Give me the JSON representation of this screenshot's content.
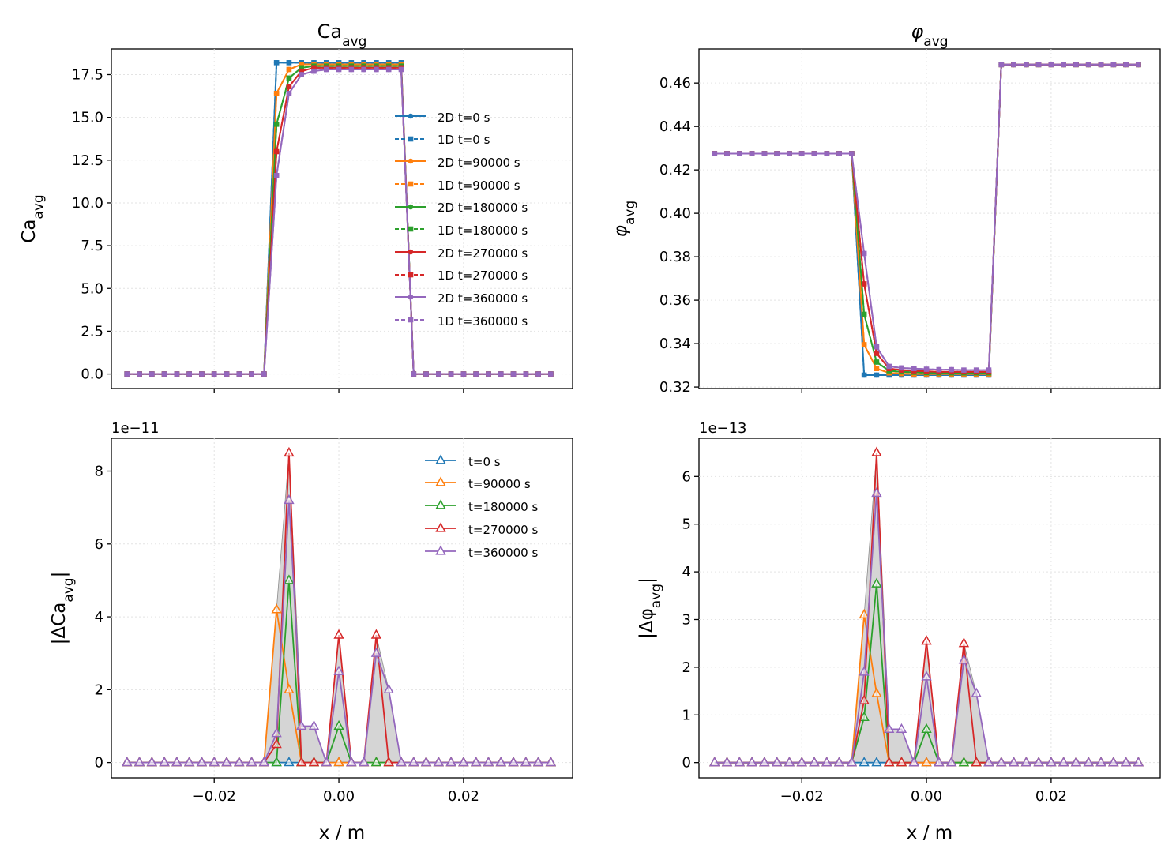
{
  "colors": {
    "t0": "#1f77b4",
    "t90000": "#ff7f0e",
    "t180000": "#2ca02c",
    "t270000": "#d62728",
    "t360000": "#9467bd",
    "fill": "#d3d3d3"
  },
  "chart_data": [
    {
      "id": "ca",
      "type": "line",
      "title_main": "Ca",
      "title_sub": "avg",
      "ylabel_main": "Ca",
      "ylabel_sub": "avg",
      "xlim": [
        -0.0365,
        0.0375
      ],
      "ylim": [
        -0.85,
        19.0
      ],
      "yticks": [
        0.0,
        2.5,
        5.0,
        7.5,
        10.0,
        12.5,
        15.0,
        17.5
      ],
      "ytick_labels": [
        "0.0",
        "2.5",
        "5.0",
        "7.5",
        "10.0",
        "12.5",
        "15.0",
        "17.5"
      ],
      "xticks": [
        -0.02,
        0.0,
        0.02
      ],
      "x": [
        -0.034,
        -0.032,
        -0.03,
        -0.028,
        -0.026,
        -0.024,
        -0.022,
        -0.02,
        -0.018,
        -0.016,
        -0.014,
        -0.012,
        -0.01,
        -0.008,
        -0.006,
        -0.004,
        -0.002,
        0.0,
        0.002,
        0.004,
        0.006,
        0.008,
        0.01,
        0.012,
        0.014,
        0.016,
        0.018,
        0.02,
        0.022,
        0.024,
        0.026,
        0.028,
        0.03,
        0.032,
        0.034
      ],
      "legend_position": "center-right",
      "legend": [
        "2D  t=0 s",
        "1D t=0 s",
        "2D  t=90000 s",
        "1D t=90000 s",
        "2D  t=180000 s",
        "1D t=180000 s",
        "2D  t=270000 s",
        "1D t=270000 s",
        "2D  t=360000 s",
        "1D t=360000 s"
      ],
      "series": [
        {
          "name": "t=0 s",
          "color_key": "t0",
          "values": [
            0,
            0,
            0,
            0,
            0,
            0,
            0,
            0,
            0,
            0,
            0,
            0,
            18.2,
            18.2,
            18.2,
            18.2,
            18.2,
            18.2,
            18.2,
            18.2,
            18.2,
            18.2,
            18.2,
            0,
            0,
            0,
            0,
            0,
            0,
            0,
            0,
            0,
            0,
            0,
            0
          ]
        },
        {
          "name": "t=90000 s",
          "color_key": "t90000",
          "values": [
            0,
            0,
            0,
            0,
            0,
            0,
            0,
            0,
            0,
            0,
            0,
            0,
            16.4,
            17.8,
            18.1,
            18.1,
            18.1,
            18.1,
            18.1,
            18.1,
            18.1,
            18.1,
            18.1,
            0,
            0,
            0,
            0,
            0,
            0,
            0,
            0,
            0,
            0,
            0,
            0
          ]
        },
        {
          "name": "t=180000 s",
          "color_key": "t180000",
          "values": [
            0,
            0,
            0,
            0,
            0,
            0,
            0,
            0,
            0,
            0,
            0,
            0,
            14.6,
            17.3,
            17.9,
            18.0,
            18.0,
            18.0,
            18.0,
            18.0,
            18.0,
            18.0,
            18.0,
            0,
            0,
            0,
            0,
            0,
            0,
            0,
            0,
            0,
            0,
            0,
            0
          ]
        },
        {
          "name": "t=270000 s",
          "color_key": "t270000",
          "values": [
            0,
            0,
            0,
            0,
            0,
            0,
            0,
            0,
            0,
            0,
            0,
            0,
            13.0,
            16.8,
            17.7,
            17.9,
            17.9,
            17.9,
            17.9,
            17.9,
            17.9,
            17.9,
            17.9,
            0,
            0,
            0,
            0,
            0,
            0,
            0,
            0,
            0,
            0,
            0,
            0
          ]
        },
        {
          "name": "t=360000 s",
          "color_key": "t360000",
          "values": [
            0,
            0,
            0,
            0,
            0,
            0,
            0,
            0,
            0,
            0,
            0,
            0,
            11.6,
            16.4,
            17.5,
            17.7,
            17.8,
            17.8,
            17.8,
            17.8,
            17.8,
            17.8,
            17.8,
            0,
            0,
            0,
            0,
            0,
            0,
            0,
            0,
            0,
            0,
            0,
            0
          ]
        }
      ]
    },
    {
      "id": "phi",
      "type": "line",
      "title_main": "φ",
      "title_sub": "avg",
      "ylabel_main": "φ",
      "ylabel_sub": "avg",
      "xlim": [
        -0.0365,
        0.0375
      ],
      "ylim": [
        0.3193,
        0.4757
      ],
      "yticks": [
        0.32,
        0.34,
        0.36,
        0.38,
        0.4,
        0.42,
        0.44,
        0.46
      ],
      "ytick_labels": [
        "0.32",
        "0.34",
        "0.36",
        "0.38",
        "0.40",
        "0.42",
        "0.44",
        "0.46"
      ],
      "xticks": [
        -0.02,
        0.0,
        0.02
      ],
      "x": [
        -0.034,
        -0.032,
        -0.03,
        -0.028,
        -0.026,
        -0.024,
        -0.022,
        -0.02,
        -0.018,
        -0.016,
        -0.014,
        -0.012,
        -0.01,
        -0.008,
        -0.006,
        -0.004,
        -0.002,
        0.0,
        0.002,
        0.004,
        0.006,
        0.008,
        0.01,
        0.012,
        0.014,
        0.016,
        0.018,
        0.02,
        0.022,
        0.024,
        0.026,
        0.028,
        0.03,
        0.032,
        0.034
      ],
      "series": [
        {
          "name": "t=0 s",
          "color_key": "t0",
          "values": [
            0.4275,
            0.4275,
            0.4275,
            0.4275,
            0.4275,
            0.4275,
            0.4275,
            0.4275,
            0.4275,
            0.4275,
            0.4275,
            0.4275,
            0.3255,
            0.3255,
            0.3255,
            0.3255,
            0.3255,
            0.3255,
            0.3255,
            0.3255,
            0.3255,
            0.3255,
            0.3255,
            0.4685,
            0.4685,
            0.4685,
            0.4685,
            0.4685,
            0.4685,
            0.4685,
            0.4685,
            0.4685,
            0.4685,
            0.4685,
            0.4685
          ]
        },
        {
          "name": "t=90000 s",
          "color_key": "t90000",
          "values": [
            0.4275,
            0.4275,
            0.4275,
            0.4275,
            0.4275,
            0.4275,
            0.4275,
            0.4275,
            0.4275,
            0.4275,
            0.4275,
            0.4275,
            0.3395,
            0.3285,
            0.3265,
            0.3262,
            0.326,
            0.326,
            0.326,
            0.326,
            0.326,
            0.326,
            0.326,
            0.4685,
            0.4685,
            0.4685,
            0.4685,
            0.4685,
            0.4685,
            0.4685,
            0.4685,
            0.4685,
            0.4685,
            0.4685,
            0.4685
          ]
        },
        {
          "name": "t=180000 s",
          "color_key": "t180000",
          "values": [
            0.4275,
            0.4275,
            0.4275,
            0.4275,
            0.4275,
            0.4275,
            0.4275,
            0.4275,
            0.4275,
            0.4275,
            0.4275,
            0.4275,
            0.3535,
            0.3315,
            0.3275,
            0.327,
            0.3268,
            0.3266,
            0.3265,
            0.3265,
            0.3265,
            0.3265,
            0.3265,
            0.4685,
            0.4685,
            0.4685,
            0.4685,
            0.4685,
            0.4685,
            0.4685,
            0.4685,
            0.4685,
            0.4685,
            0.4685,
            0.4685
          ]
        },
        {
          "name": "t=270000 s",
          "color_key": "t270000",
          "values": [
            0.4275,
            0.4275,
            0.4275,
            0.4275,
            0.4275,
            0.4275,
            0.4275,
            0.4275,
            0.4275,
            0.4275,
            0.4275,
            0.4275,
            0.3675,
            0.3355,
            0.3285,
            0.3278,
            0.3275,
            0.3272,
            0.327,
            0.327,
            0.327,
            0.327,
            0.327,
            0.4685,
            0.4685,
            0.4685,
            0.4685,
            0.4685,
            0.4685,
            0.4685,
            0.4685,
            0.4685,
            0.4685,
            0.4685,
            0.4685
          ]
        },
        {
          "name": "t=360000 s",
          "color_key": "t360000",
          "values": [
            0.4275,
            0.4275,
            0.4275,
            0.4275,
            0.4275,
            0.4275,
            0.4275,
            0.4275,
            0.4275,
            0.4275,
            0.4275,
            0.4275,
            0.3815,
            0.3385,
            0.3295,
            0.3288,
            0.3285,
            0.3282,
            0.328,
            0.328,
            0.3278,
            0.3278,
            0.3278,
            0.4685,
            0.4685,
            0.4685,
            0.4685,
            0.4685,
            0.4685,
            0.4685,
            0.4685,
            0.4685,
            0.4685,
            0.4685,
            0.4685
          ]
        }
      ]
    },
    {
      "id": "dca",
      "type": "line",
      "ylabel_main": "|ΔCa",
      "ylabel_sub": "avg",
      "ylabel_end": "|",
      "xlabel": "x / m",
      "offset_label": "1e−11",
      "xlim": [
        -0.0365,
        0.0375
      ],
      "ylim": [
        -0.42,
        8.9
      ],
      "yticks": [
        0,
        2,
        4,
        6,
        8
      ],
      "ytick_labels": [
        "0",
        "2",
        "4",
        "6",
        "8"
      ],
      "xticks": [
        -0.02,
        0.0,
        0.02
      ],
      "xtick_labels": [
        "−0.02",
        "0.00",
        "0.02"
      ],
      "x": [
        -0.034,
        -0.032,
        -0.03,
        -0.028,
        -0.026,
        -0.024,
        -0.022,
        -0.02,
        -0.018,
        -0.016,
        -0.014,
        -0.012,
        -0.01,
        -0.008,
        -0.006,
        -0.004,
        -0.002,
        0.0,
        0.002,
        0.004,
        0.006,
        0.008,
        0.01,
        0.012,
        0.014,
        0.016,
        0.018,
        0.02,
        0.022,
        0.024,
        0.026,
        0.028,
        0.03,
        0.032,
        0.034
      ],
      "legend_position": "top-right",
      "legend": [
        "t=0 s",
        "t=90000 s",
        "t=180000 s",
        "t=270000 s",
        "t=360000 s"
      ],
      "series": [
        {
          "name": "t=0 s",
          "color_key": "t0",
          "values": [
            0,
            0,
            0,
            0,
            0,
            0,
            0,
            0,
            0,
            0,
            0,
            0,
            0,
            0,
            0,
            0,
            0,
            0,
            0,
            0,
            0,
            0,
            0,
            0,
            0,
            0,
            0,
            0,
            0,
            0,
            0,
            0,
            0,
            0,
            0
          ]
        },
        {
          "name": "t=90000 s",
          "color_key": "t90000",
          "values": [
            0,
            0,
            0,
            0,
            0,
            0,
            0,
            0,
            0,
            0,
            0,
            0,
            4.2,
            2.0,
            0,
            0,
            0,
            0,
            0,
            0,
            0,
            0,
            0,
            0,
            0,
            0,
            0,
            0,
            0,
            0,
            0,
            0,
            0,
            0,
            0
          ]
        },
        {
          "name": "t=180000 s",
          "color_key": "t180000",
          "values": [
            0,
            0,
            0,
            0,
            0,
            0,
            0,
            0,
            0,
            0,
            0,
            0,
            0,
            5.0,
            0,
            0,
            0,
            1.0,
            0,
            0,
            0,
            0,
            0,
            0,
            0,
            0,
            0,
            0,
            0,
            0,
            0,
            0,
            0,
            0,
            0
          ]
        },
        {
          "name": "t=270000 s",
          "color_key": "t270000",
          "values": [
            0,
            0,
            0,
            0,
            0,
            0,
            0,
            0,
            0,
            0,
            0,
            0,
            0.5,
            8.5,
            0,
            0,
            0,
            3.5,
            0,
            0,
            3.5,
            0,
            0,
            0,
            0,
            0,
            0,
            0,
            0,
            0,
            0,
            0,
            0,
            0,
            0
          ]
        },
        {
          "name": "t=360000 s",
          "color_key": "t360000",
          "values": [
            0,
            0,
            0,
            0,
            0,
            0,
            0,
            0,
            0,
            0,
            0,
            0,
            0.8,
            7.2,
            1.0,
            1.0,
            0,
            2.5,
            0,
            0,
            3.0,
            2.0,
            0,
            0,
            0,
            0,
            0,
            0,
            0,
            0,
            0,
            0,
            0,
            0,
            0
          ]
        }
      ]
    },
    {
      "id": "dphi",
      "type": "line",
      "ylabel_main": "|Δφ",
      "ylabel_sub": "avg",
      "ylabel_end": "|",
      "xlabel": "x / m",
      "offset_label": "1e−13",
      "xlim": [
        -0.0365,
        0.0375
      ],
      "ylim": [
        -0.32,
        6.8
      ],
      "yticks": [
        0,
        1,
        2,
        3,
        4,
        5,
        6
      ],
      "ytick_labels": [
        "0",
        "1",
        "2",
        "3",
        "4",
        "5",
        "6"
      ],
      "xticks": [
        -0.02,
        0.0,
        0.02
      ],
      "xtick_labels": [
        "−0.02",
        "0.00",
        "0.02"
      ],
      "x": [
        -0.034,
        -0.032,
        -0.03,
        -0.028,
        -0.026,
        -0.024,
        -0.022,
        -0.02,
        -0.018,
        -0.016,
        -0.014,
        -0.012,
        -0.01,
        -0.008,
        -0.006,
        -0.004,
        -0.002,
        0.0,
        0.002,
        0.004,
        0.006,
        0.008,
        0.01,
        0.012,
        0.014,
        0.016,
        0.018,
        0.02,
        0.022,
        0.024,
        0.026,
        0.028,
        0.03,
        0.032,
        0.034
      ],
      "series": [
        {
          "name": "t=0 s",
          "color_key": "t0",
          "values": [
            0,
            0,
            0,
            0,
            0,
            0,
            0,
            0,
            0,
            0,
            0,
            0,
            0,
            0,
            0,
            0,
            0,
            0,
            0,
            0,
            0,
            0,
            0,
            0,
            0,
            0,
            0,
            0,
            0,
            0,
            0,
            0,
            0,
            0,
            0
          ]
        },
        {
          "name": "t=90000 s",
          "color_key": "t90000",
          "values": [
            0,
            0,
            0,
            0,
            0,
            0,
            0,
            0,
            0,
            0,
            0,
            0,
            3.1,
            1.45,
            0,
            0,
            0,
            0,
            0,
            0,
            0,
            0,
            0,
            0,
            0,
            0,
            0,
            0,
            0,
            0,
            0,
            0,
            0,
            0,
            0
          ]
        },
        {
          "name": "t=180000 s",
          "color_key": "t180000",
          "values": [
            0,
            0,
            0,
            0,
            0,
            0,
            0,
            0,
            0,
            0,
            0,
            0,
            0.95,
            3.75,
            0,
            0,
            0,
            0.7,
            0,
            0,
            0,
            0,
            0,
            0,
            0,
            0,
            0,
            0,
            0,
            0,
            0,
            0,
            0,
            0,
            0
          ]
        },
        {
          "name": "t=270000 s",
          "color_key": "t270000",
          "values": [
            0,
            0,
            0,
            0,
            0,
            0,
            0,
            0,
            0,
            0,
            0,
            0,
            1.3,
            6.5,
            0,
            0,
            0,
            2.55,
            0,
            0,
            2.5,
            0,
            0,
            0,
            0,
            0,
            0,
            0,
            0,
            0,
            0,
            0,
            0,
            0,
            0
          ]
        },
        {
          "name": "t=360000 s",
          "color_key": "t360000",
          "values": [
            0,
            0,
            0,
            0,
            0,
            0,
            0,
            0,
            0,
            0,
            0,
            0,
            1.9,
            5.65,
            0.7,
            0.7,
            0,
            1.8,
            0,
            0,
            2.15,
            1.45,
            0,
            0,
            0,
            0,
            0,
            0,
            0,
            0,
            0,
            0,
            0,
            0,
            0
          ]
        }
      ]
    }
  ]
}
